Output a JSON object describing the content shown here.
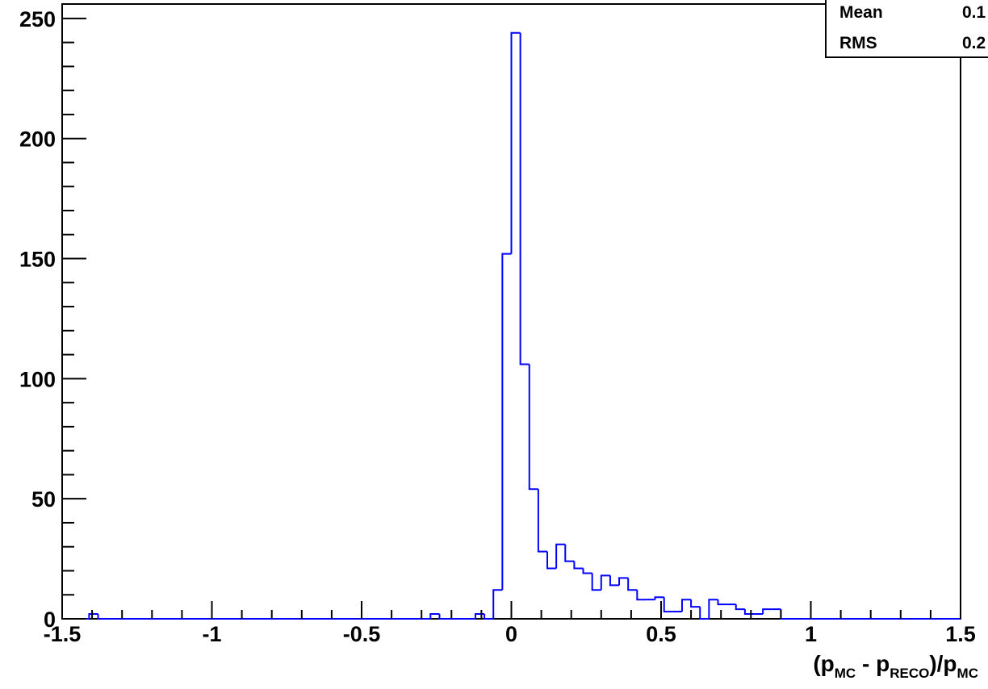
{
  "chart_data": {
    "type": "histogram",
    "x_label_parts": [
      "(p",
      "MC",
      " - p",
      "RECO",
      ")/p",
      "MC"
    ],
    "stats": [
      {
        "name": "Mean",
        "value": "0.1"
      },
      {
        "name": "RMS",
        "value": "0.2"
      }
    ],
    "bins": [
      -1.5,
      -1.47,
      -1.44,
      -1.41,
      -1.38,
      -1.35,
      -1.32,
      -1.29,
      -1.26,
      -1.23,
      -1.2,
      -1.17,
      -1.14,
      -1.11,
      -1.08,
      -1.05,
      -1.02,
      -0.99,
      -0.96,
      -0.93,
      -0.9,
      -0.87,
      -0.84,
      -0.81,
      -0.78,
      -0.75,
      -0.72,
      -0.69,
      -0.66,
      -0.63,
      -0.6,
      -0.57,
      -0.54,
      -0.51,
      -0.48,
      -0.45,
      -0.42,
      -0.39,
      -0.36,
      -0.33,
      -0.3,
      -0.27,
      -0.24,
      -0.21,
      -0.18,
      -0.15,
      -0.12,
      -0.09,
      -0.06,
      -0.03,
      0,
      0.03,
      0.06,
      0.09,
      0.12,
      0.15,
      0.18,
      0.21,
      0.24,
      0.27,
      0.3,
      0.33,
      0.36,
      0.39,
      0.42,
      0.45,
      0.48,
      0.51,
      0.54,
      0.57,
      0.6,
      0.63,
      0.66,
      0.69,
      0.72,
      0.75,
      0.78,
      0.81,
      0.84,
      0.87,
      0.9,
      0.93,
      0.96,
      0.99,
      1.02,
      1.05,
      1.08,
      1.11,
      1.14,
      1.17,
      1.2,
      1.23,
      1.26,
      1.29,
      1.32,
      1.35,
      1.38,
      1.41,
      1.44,
      1.47,
      1.5
    ],
    "values": [
      0,
      0,
      0,
      2,
      0,
      0,
      0,
      0,
      0,
      0,
      0,
      0,
      0,
      0,
      0,
      0,
      0,
      0,
      0,
      0,
      0,
      0,
      0,
      0,
      0,
      0,
      0,
      0,
      0,
      0,
      0,
      0,
      0,
      0,
      0,
      0,
      0,
      0,
      0,
      0,
      0,
      2,
      0,
      0,
      0,
      0,
      2,
      0,
      12,
      152,
      244,
      106,
      54,
      28,
      21,
      31,
      24,
      21,
      19,
      12,
      18,
      14,
      17,
      12,
      8,
      8,
      9,
      3,
      3,
      8,
      5,
      0,
      8,
      6,
      6,
      4,
      2,
      2,
      4,
      4,
      0,
      0,
      0,
      0,
      0,
      0,
      0,
      0,
      0,
      0,
      0,
      0,
      0,
      0,
      0,
      0,
      0,
      0,
      0,
      0
    ],
    "color": "#0000ff",
    "xlim": [
      -1.5,
      1.5
    ],
    "xticks": [
      -1.5,
      -1,
      -0.5,
      0,
      0.5,
      1,
      1.5
    ],
    "ylim": [
      0,
      256
    ],
    "yticks": [
      0,
      50,
      100,
      150,
      200,
      250
    ]
  }
}
